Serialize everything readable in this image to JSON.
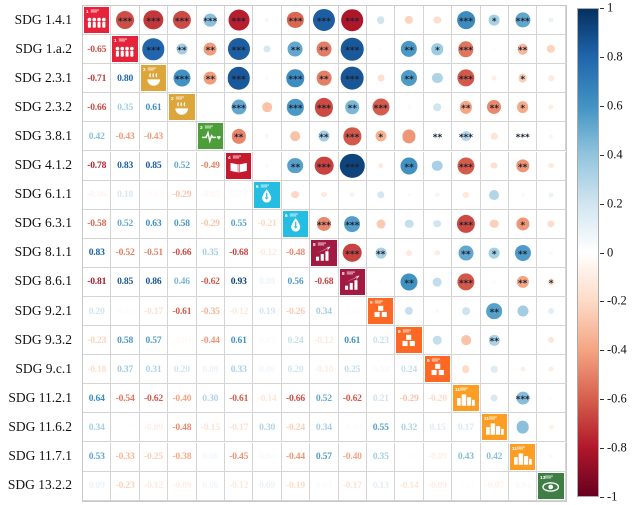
{
  "chart_data": {
    "type": "heatmap",
    "subtype": "correlation-matrix-corrplot",
    "title": "",
    "legend_position": "right-colorbar",
    "grid": true,
    "labels": [
      "SDG 1.4.1",
      "SDG 1.a.2",
      "SDG 2.3.1",
      "SDG 2.3.2",
      "SDG 3.8.1",
      "SDG 4.1.2",
      "SDG 6.1.1",
      "SDG 6.3.1",
      "SDG 8.1.1",
      "SDG 8.6.1",
      "SDG 9.2.1",
      "SDG 9.3.2",
      "SDG 9.c.1",
      "SDG 11.2.1",
      "SDG 11.6.2",
      "SDG 11.7.1",
      "SDG 13.2.2"
    ],
    "lower_triangle": [
      [],
      [
        -0.65
      ],
      [
        -0.71,
        0.8
      ],
      [
        -0.66,
        0.35,
        0.61
      ],
      [
        0.42,
        -0.43,
        -0.43,
        null
      ],
      [
        -0.78,
        0.83,
        0.85,
        0.52,
        -0.49
      ],
      [
        -0.06,
        0.18,
        -0.03,
        -0.29,
        -0.05,
        0.03
      ],
      [
        -0.58,
        0.52,
        0.63,
        0.58,
        -0.29,
        0.55,
        -0.21
      ],
      [
        0.83,
        -0.52,
        -0.51,
        -0.66,
        0.35,
        -0.68,
        -0.12,
        -0.48
      ],
      [
        -0.81,
        0.85,
        0.86,
        0.46,
        -0.62,
        0.93,
        0.08,
        0.56,
        -0.68
      ],
      [
        0.2,
        -0.02,
        -0.17,
        -0.61,
        -0.35,
        -0.12,
        0.19,
        -0.26,
        0.34,
        -0.02
      ],
      [
        -0.23,
        0.58,
        0.57,
        -0.03,
        -0.44,
        0.61,
        0.03,
        0.24,
        -0.12,
        0.61,
        0.23
      ],
      [
        -0.18,
        0.37,
        0.31,
        0.2,
        0.09,
        0.33,
        0.06,
        0.2,
        -0.1,
        0.25,
        0.04,
        0.24
      ],
      [
        0.64,
        -0.54,
        -0.62,
        -0.4,
        0.3,
        -0.61,
        -0.14,
        -0.66,
        0.52,
        -0.62,
        0.21,
        -0.29,
        -0.2
      ],
      [
        0.34,
        -0.01,
        -0.09,
        -0.48,
        -0.15,
        -0.17,
        0.3,
        -0.24,
        0.34,
        -0.03,
        0.55,
        0.32,
        0.15,
        0.17
      ],
      [
        0.53,
        -0.33,
        -0.25,
        -0.38,
        0.06,
        -0.45,
        0.04,
        -0.44,
        0.57,
        -0.4,
        0.35,
        0.01,
        -0.09,
        0.43,
        0.42
      ],
      [
        0.09,
        -0.23,
        -0.12,
        -0.09,
        0.06,
        -0.12,
        0.09,
        -0.19,
        0.03,
        -0.17,
        0.13,
        -0.14,
        -0.09,
        -0.01,
        -0.07,
        0.04
      ]
    ],
    "significance_stars": [
      [
        0,
        1,
        3
      ],
      [
        0,
        2,
        3
      ],
      [
        0,
        3,
        3
      ],
      [
        0,
        4,
        3
      ],
      [
        0,
        5,
        3
      ],
      [
        0,
        7,
        3
      ],
      [
        0,
        8,
        3
      ],
      [
        0,
        9,
        3
      ],
      [
        0,
        13,
        3
      ],
      [
        0,
        14,
        1
      ],
      [
        0,
        15,
        3
      ],
      [
        1,
        2,
        3
      ],
      [
        1,
        3,
        2
      ],
      [
        1,
        4,
        2
      ],
      [
        1,
        5,
        3
      ],
      [
        1,
        7,
        2
      ],
      [
        1,
        8,
        2
      ],
      [
        1,
        9,
        3
      ],
      [
        1,
        11,
        2
      ],
      [
        1,
        12,
        1
      ],
      [
        1,
        13,
        3
      ],
      [
        1,
        15,
        2
      ],
      [
        2,
        3,
        3
      ],
      [
        2,
        4,
        2
      ],
      [
        2,
        5,
        3
      ],
      [
        2,
        7,
        3
      ],
      [
        2,
        8,
        2
      ],
      [
        2,
        9,
        3
      ],
      [
        2,
        11,
        2
      ],
      [
        2,
        13,
        3
      ],
      [
        2,
        15,
        1
      ],
      [
        3,
        5,
        3
      ],
      [
        3,
        7,
        3
      ],
      [
        3,
        8,
        3
      ],
      [
        3,
        9,
        2
      ],
      [
        3,
        10,
        3
      ],
      [
        3,
        13,
        2
      ],
      [
        3,
        14,
        2
      ],
      [
        3,
        15,
        1
      ],
      [
        4,
        5,
        2
      ],
      [
        4,
        8,
        2
      ],
      [
        4,
        9,
        3
      ],
      [
        4,
        10,
        1
      ],
      [
        4,
        12,
        2
      ],
      [
        4,
        13,
        3
      ],
      [
        4,
        15,
        3
      ],
      [
        5,
        7,
        2
      ],
      [
        5,
        8,
        3
      ],
      [
        5,
        9,
        3
      ],
      [
        5,
        11,
        2
      ],
      [
        5,
        13,
        3
      ],
      [
        5,
        15,
        2
      ],
      [
        7,
        8,
        3
      ],
      [
        7,
        9,
        3
      ],
      [
        7,
        13,
        3
      ],
      [
        7,
        15,
        1
      ],
      [
        8,
        9,
        3
      ],
      [
        8,
        10,
        2
      ],
      [
        8,
        13,
        2
      ],
      [
        8,
        14,
        1
      ],
      [
        8,
        15,
        2
      ],
      [
        9,
        11,
        2
      ],
      [
        9,
        13,
        3
      ],
      [
        9,
        15,
        2
      ],
      [
        9,
        16,
        1
      ],
      [
        10,
        14,
        2
      ],
      [
        11,
        14,
        2
      ],
      [
        13,
        15,
        3
      ]
    ],
    "diagonal_icons": [
      {
        "goal": "1",
        "color": "#E5243B",
        "glyph": "no-poverty-people-icon"
      },
      {
        "goal": "1",
        "color": "#E5243B",
        "glyph": "no-poverty-people-icon"
      },
      {
        "goal": "2",
        "color": "#DDA63A",
        "glyph": "zero-hunger-bowl-icon"
      },
      {
        "goal": "2",
        "color": "#DDA63A",
        "glyph": "zero-hunger-bowl-icon"
      },
      {
        "goal": "3",
        "color": "#4C9F38",
        "glyph": "good-health-heartbeat-icon"
      },
      {
        "goal": "4",
        "color": "#C5192D",
        "glyph": "quality-education-book-icon"
      },
      {
        "goal": "6",
        "color": "#26BDE2",
        "glyph": "clean-water-drop-icon"
      },
      {
        "goal": "6",
        "color": "#26BDE2",
        "glyph": "clean-water-drop-icon"
      },
      {
        "goal": "8",
        "color": "#A21942",
        "glyph": "decent-work-growth-icon"
      },
      {
        "goal": "8",
        "color": "#A21942",
        "glyph": "decent-work-growth-icon"
      },
      {
        "goal": "9",
        "color": "#FD6925",
        "glyph": "industry-innovation-blocks-icon"
      },
      {
        "goal": "9",
        "color": "#FD6925",
        "glyph": "industry-innovation-blocks-icon"
      },
      {
        "goal": "9",
        "color": "#FD6925",
        "glyph": "industry-innovation-blocks-icon"
      },
      {
        "goal": "11",
        "color": "#FD9D24",
        "glyph": "sustainable-cities-buildings-icon"
      },
      {
        "goal": "11",
        "color": "#FD9D24",
        "glyph": "sustainable-cities-buildings-icon"
      },
      {
        "goal": "11",
        "color": "#FD9D24",
        "glyph": "sustainable-cities-buildings-icon"
      },
      {
        "goal": "13",
        "color": "#3F7E44",
        "glyph": "climate-action-eye-icon"
      }
    ],
    "palette_rdbu": [
      [
        -1.0,
        "#67001F"
      ],
      [
        -0.8,
        "#B2182B"
      ],
      [
        -0.6,
        "#D6604D"
      ],
      [
        -0.4,
        "#F4A582"
      ],
      [
        -0.2,
        "#FDDBC7"
      ],
      [
        0.0,
        "#FFFFFF"
      ],
      [
        0.2,
        "#D1E5F0"
      ],
      [
        0.4,
        "#92C5DE"
      ],
      [
        0.6,
        "#4393C3"
      ],
      [
        0.8,
        "#2166AC"
      ],
      [
        1.0,
        "#053061"
      ]
    ],
    "colorbar": {
      "min": -1,
      "max": 1,
      "tick_labels": [
        "1",
        "0.8",
        "0.6",
        "0.4",
        "0.2",
        "0",
        "-0.2",
        "-0.4",
        "-0.6",
        "-0.8",
        "-1"
      ]
    }
  }
}
